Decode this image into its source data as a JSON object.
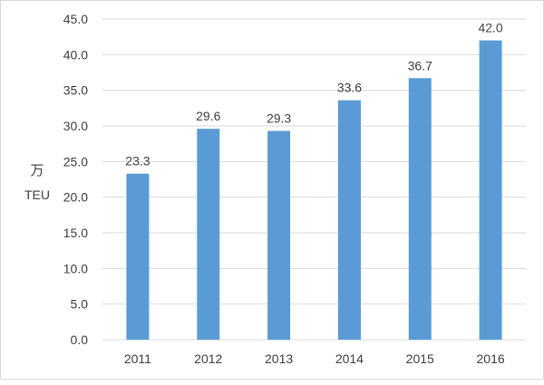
{
  "chart_data": {
    "type": "bar",
    "title": "",
    "xlabel": "",
    "ylabel_line1": "万",
    "ylabel_line2": "TEU",
    "categories": [
      "2011",
      "2012",
      "2013",
      "2014",
      "2015",
      "2016"
    ],
    "values": [
      23.3,
      29.6,
      29.3,
      33.6,
      36.7,
      42.0
    ],
    "value_labels": [
      "23.3",
      "29.6",
      "29.3",
      "33.6",
      "36.7",
      "42.0"
    ],
    "yticks": [
      "0.0",
      "5.0",
      "10.0",
      "15.0",
      "20.0",
      "25.0",
      "30.0",
      "35.0",
      "40.0",
      "45.0"
    ],
    "ylim": [
      0,
      45
    ],
    "grid": true,
    "legend": "none",
    "bar_color": "#5b9bd5",
    "grid_color": "#d9d9d9",
    "text_color": "#404040"
  }
}
